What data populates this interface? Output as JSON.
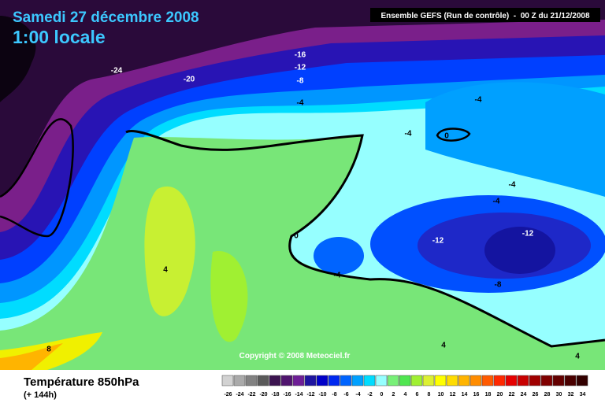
{
  "header": {
    "date": "Samedi 27 décembre 2008",
    "time": "1:00 locale",
    "model": "Ensemble GEFS (Run de contrôle)  -  00 Z du 21/12/2008"
  },
  "contour_labels": [
    "-24",
    "-20",
    "-16",
    "-12",
    "-8",
    "-4",
    "-4",
    "-4",
    "0",
    "-4",
    "-4",
    "-12",
    "-12",
    "0",
    "-4",
    "-8",
    "4",
    "8",
    "4",
    "4"
  ],
  "copyright": "Copyright © 2008 Meteociel.fr",
  "footer": {
    "title": "Température 850hPa",
    "subtitle": "(+ 144h)"
  },
  "legend": {
    "values": [
      -26,
      -24,
      -22,
      -20,
      -18,
      -16,
      -14,
      -12,
      -10,
      -8,
      -6,
      -4,
      -2,
      0,
      2,
      4,
      6,
      8,
      10,
      12,
      14,
      16,
      18,
      20,
      22,
      24,
      26,
      28,
      30,
      32,
      34
    ],
    "colors": [
      "#d2d2d2",
      "#aaaaaa",
      "#828282",
      "#5a5a5a",
      "#3c1450",
      "#50146e",
      "#6e1e96",
      "#1e14a0",
      "#0000c8",
      "#0028f0",
      "#0064ff",
      "#00a0ff",
      "#00dcff",
      "#96ffff",
      "#78f078",
      "#50e650",
      "#a0f032",
      "#dcf032",
      "#ffff00",
      "#ffdc00",
      "#ffb400",
      "#ff8c00",
      "#ff5a00",
      "#ff2800",
      "#e60000",
      "#c80000",
      "#a00000",
      "#800000",
      "#640000",
      "#4a0000",
      "#320000"
    ]
  }
}
